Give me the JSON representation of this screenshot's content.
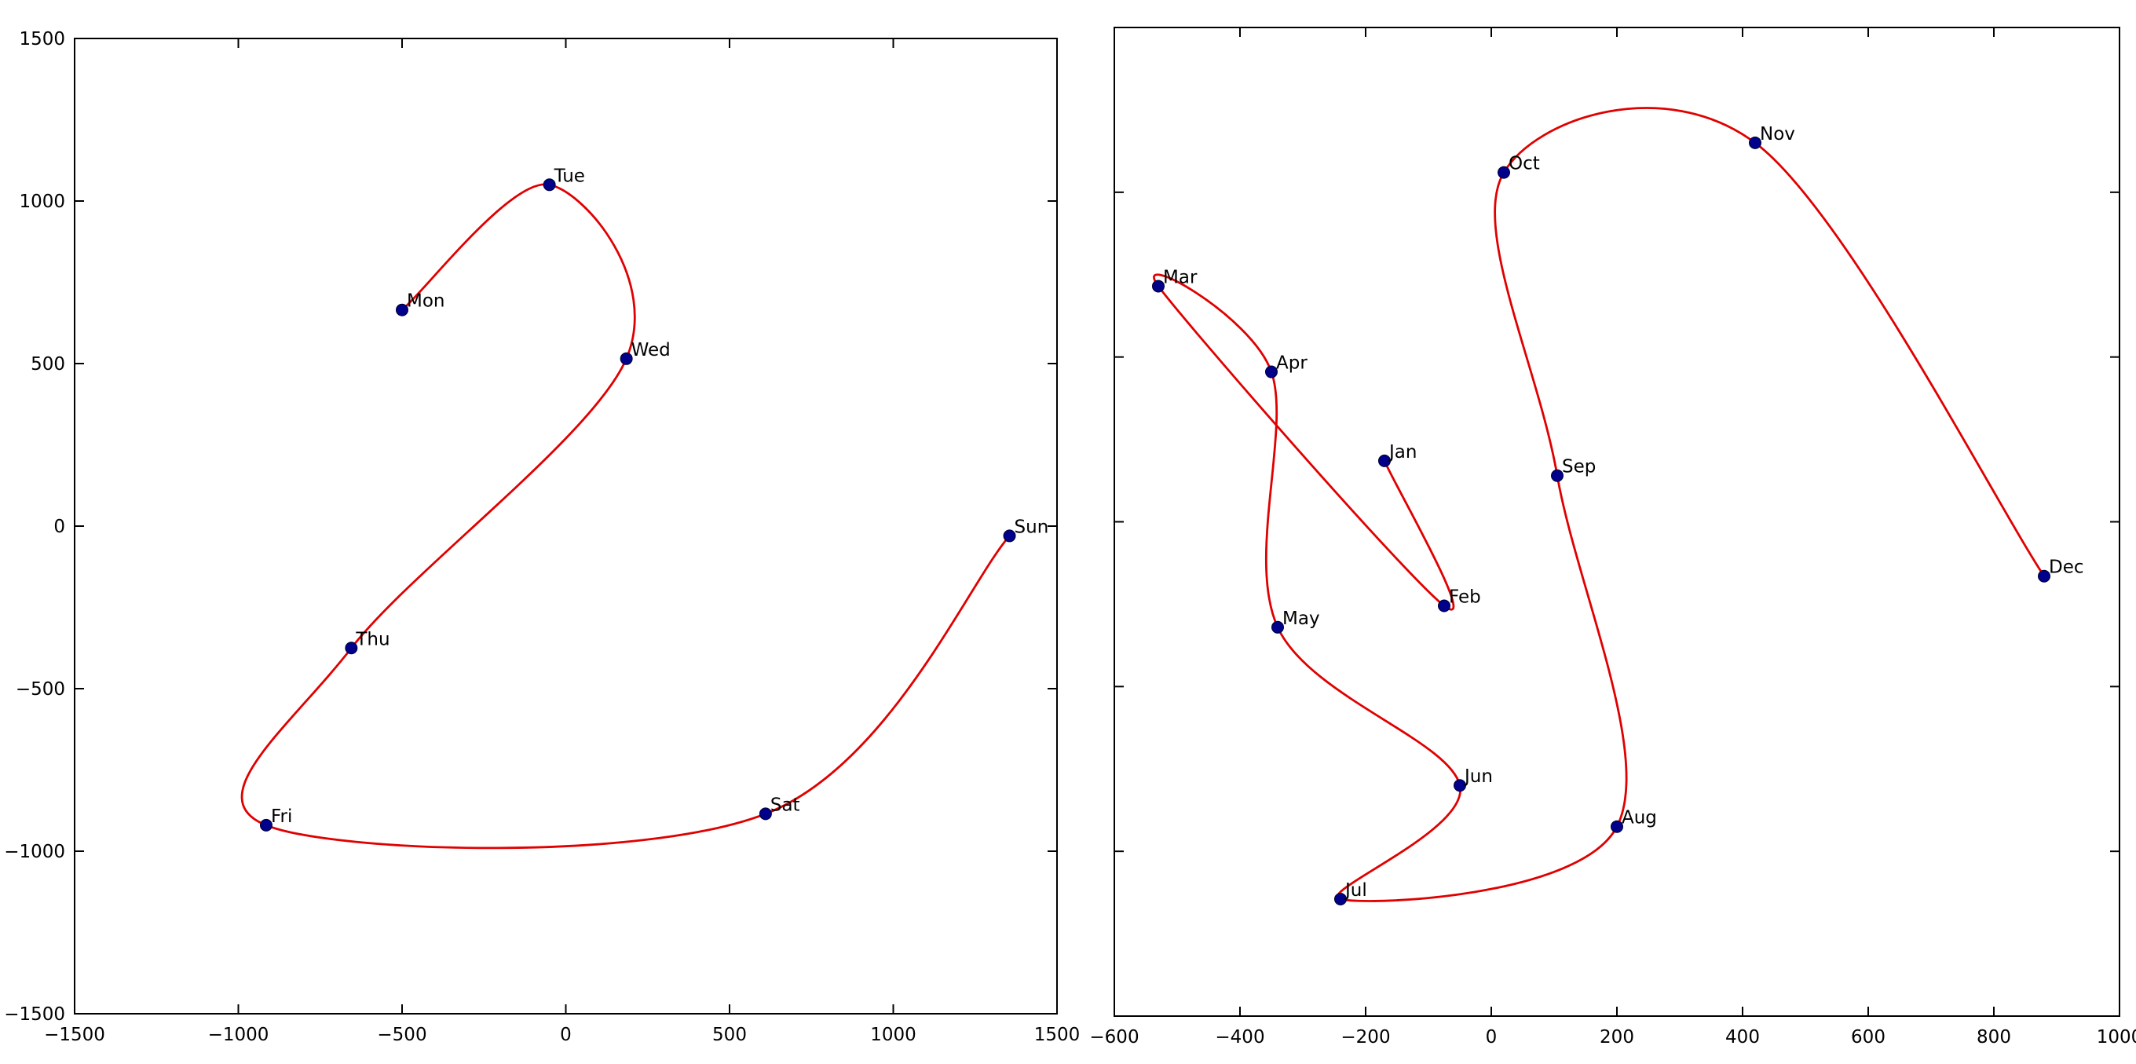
{
  "figure": {
    "background_color": "#ffffff",
    "axis_color": "#000000",
    "tick_label_fontsize": 23,
    "point_label_fontsize": 23
  },
  "chart_data": [
    {
      "type": "scatter",
      "id": "weekdays",
      "title": "",
      "xlabel": "",
      "ylabel": "",
      "x_range": [
        -1500,
        1500
      ],
      "y_range": [
        -1500,
        1500
      ],
      "x_tick_values": [
        -1500,
        -1000,
        -500,
        0,
        500,
        1000,
        1500
      ],
      "x_tick_labels": [
        "−1500",
        "−1000",
        "−500",
        "0",
        "500",
        "1000",
        "1500"
      ],
      "y_tick_values": [
        -1500,
        -1000,
        -500,
        0,
        500,
        1000,
        1500
      ],
      "y_tick_labels": [
        "−1500",
        "−1000",
        "−500",
        "0",
        "500",
        "1000",
        "1500"
      ],
      "grid": false,
      "line_color": "#e00000",
      "marker_color": "#00008b",
      "points": [
        {
          "label": "Mon",
          "x": -500,
          "y": 665
        },
        {
          "label": "Tue",
          "x": -50,
          "y": 1050
        },
        {
          "label": "Wed",
          "x": 185,
          "y": 515
        },
        {
          "label": "Thu",
          "x": -655,
          "y": -375
        },
        {
          "label": "Fri",
          "x": -915,
          "y": -920
        },
        {
          "label": "Sat",
          "x": 610,
          "y": -885
        },
        {
          "label": "Sun",
          "x": 1355,
          "y": -30
        }
      ]
    },
    {
      "type": "scatter",
      "id": "months",
      "title": "",
      "xlabel": "",
      "ylabel": "",
      "x_range": [
        -600,
        1000
      ],
      "y_range": [
        -1500,
        1500
      ],
      "x_tick_values": [
        -600,
        -400,
        -200,
        0,
        200,
        400,
        600,
        800,
        1000
      ],
      "x_tick_labels": [
        "−600",
        "−400",
        "−200",
        "0",
        "200",
        "400",
        "600",
        "800",
        "1000"
      ],
      "y_tick_values": [
        -1500,
        -1000,
        -500,
        0,
        500,
        1000,
        1500
      ],
      "y_tick_labels": [
        "",
        "",
        "",
        "",
        "",
        "",
        ""
      ],
      "grid": false,
      "line_color": "#e00000",
      "marker_color": "#00008b",
      "points": [
        {
          "label": "Jan",
          "x": -170,
          "y": 185
        },
        {
          "label": "Feb",
          "x": -75,
          "y": -255
        },
        {
          "label": "Mar",
          "x": -530,
          "y": 715
        },
        {
          "label": "Apr",
          "x": -350,
          "y": 455
        },
        {
          "label": "May",
          "x": -340,
          "y": -320
        },
        {
          "label": "Jun",
          "x": -50,
          "y": -800
        },
        {
          "label": "Jul",
          "x": -240,
          "y": -1145
        },
        {
          "label": "Aug",
          "x": 200,
          "y": -925
        },
        {
          "label": "Sep",
          "x": 105,
          "y": 140
        },
        {
          "label": "Oct",
          "x": 20,
          "y": 1060
        },
        {
          "label": "Nov",
          "x": 420,
          "y": 1150
        },
        {
          "label": "Dec",
          "x": 880,
          "y": -165
        }
      ]
    }
  ]
}
